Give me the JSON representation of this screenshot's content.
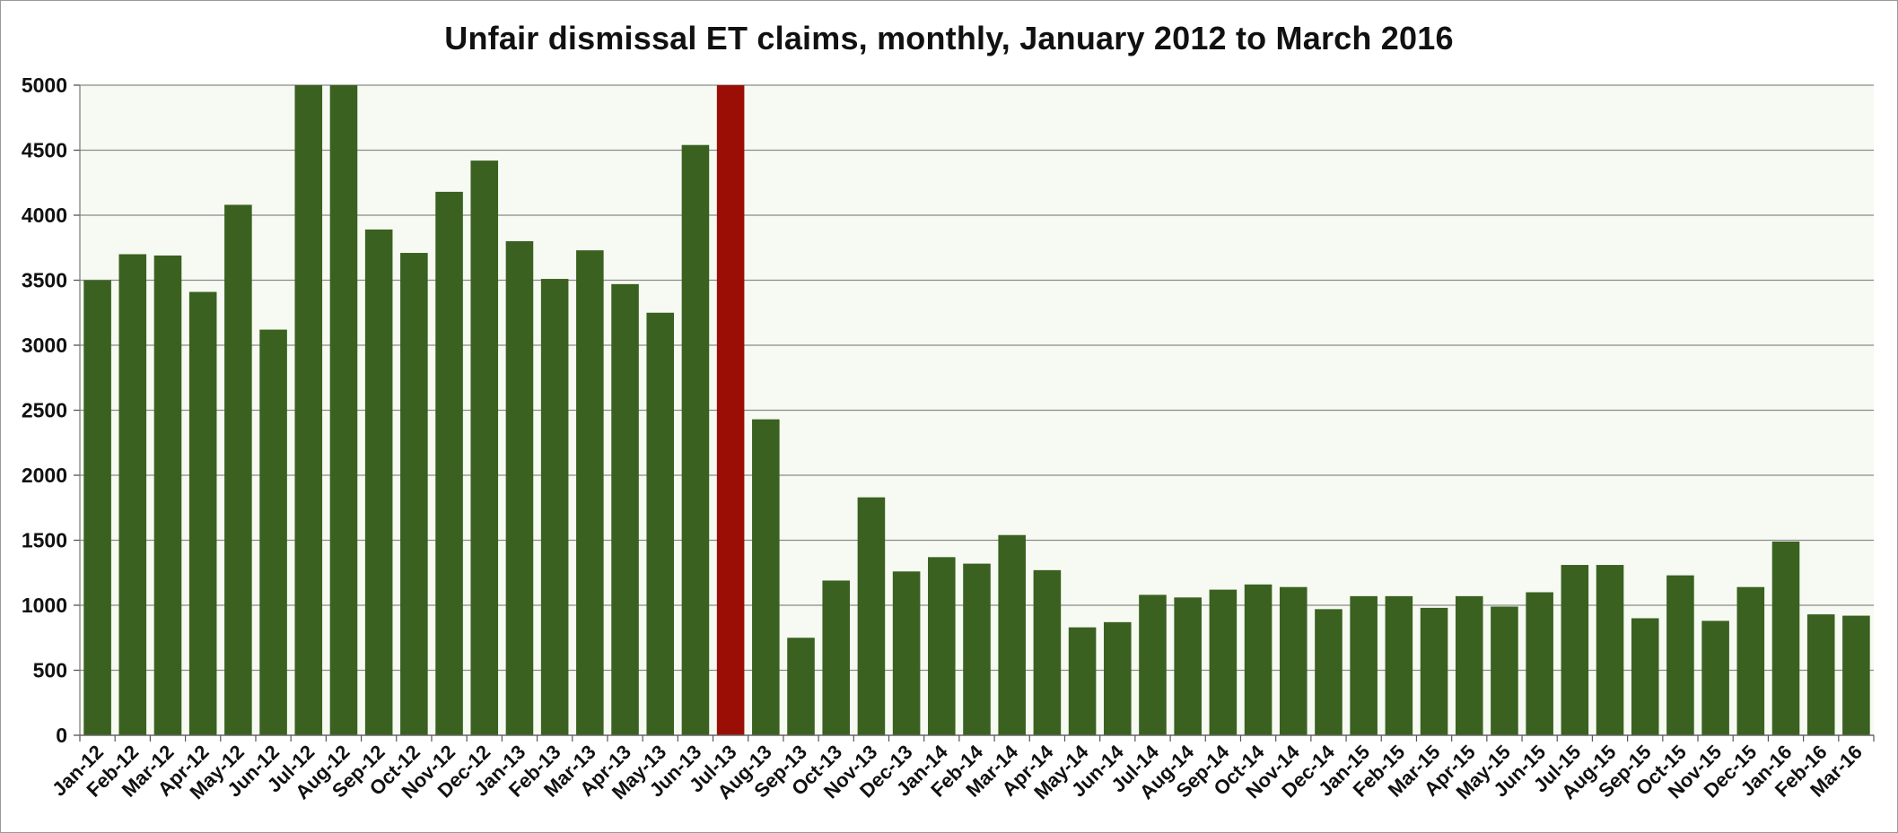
{
  "chart_data": {
    "type": "bar",
    "title": "Unfair dismissal ET claims, monthly, January 2012 to March 2016",
    "xlabel": "",
    "ylabel": "",
    "ylim": [
      0,
      5000
    ],
    "yticks": [
      0,
      500,
      1000,
      1500,
      2000,
      2500,
      3000,
      3500,
      4000,
      4500,
      5000
    ],
    "grid": true,
    "legend": "none",
    "colors": {
      "bar": "#3a6120",
      "highlight": "#9b0e06",
      "plot_background": "#f7faf2",
      "grid": "#8a8a8a"
    },
    "highlight_category": "Jul-13",
    "categories": [
      "Jan-12",
      "Feb-12",
      "Mar-12",
      "Apr-12",
      "May-12",
      "Jun-12",
      "Jul-12",
      "Aug-12",
      "Sep-12",
      "Oct-12",
      "Nov-12",
      "Dec-12",
      "Jan-13",
      "Feb-13",
      "Mar-13",
      "Apr-13",
      "May-13",
      "Jun-13",
      "Jul-13",
      "Aug-13",
      "Sep-13",
      "Oct-13",
      "Nov-13",
      "Dec-13",
      "Jan-14",
      "Feb-14",
      "Mar-14",
      "Apr-14",
      "May-14",
      "Jun-14",
      "Jul-14",
      "Aug-14",
      "Sep-14",
      "Oct-14",
      "Nov-14",
      "Dec-14",
      "Jan-15",
      "Feb-15",
      "Mar-15",
      "Apr-15",
      "May-15",
      "Jun-15",
      "Jul-15",
      "Aug-15",
      "Sep-15",
      "Oct-15",
      "Nov-15",
      "Dec-15",
      "Jan-16",
      "Feb-16",
      "Mar-16"
    ],
    "values": [
      3500,
      3700,
      3690,
      3410,
      4080,
      3120,
      5000,
      5000,
      3890,
      3710,
      4180,
      4420,
      3800,
      3510,
      3730,
      3470,
      3250,
      4540,
      5000,
      2430,
      750,
      1190,
      1830,
      1260,
      1370,
      1320,
      1540,
      1270,
      830,
      870,
      1080,
      1060,
      1120,
      1160,
      1140,
      970,
      1070,
      1070,
      980,
      1070,
      990,
      1100,
      1310,
      1310,
      900,
      1230,
      880,
      1140,
      1490,
      930,
      920
    ]
  }
}
